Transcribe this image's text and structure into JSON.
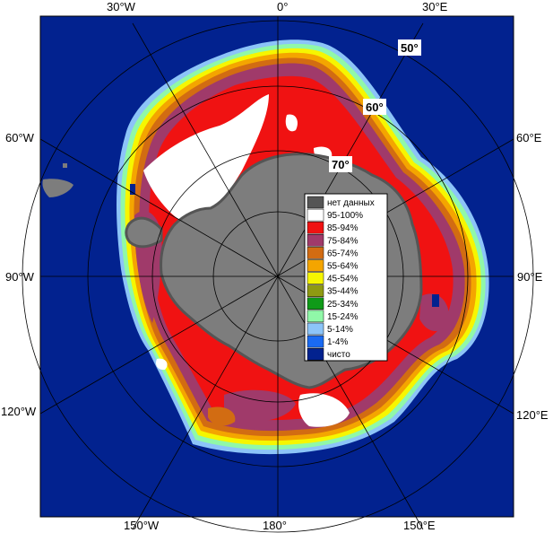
{
  "map": {
    "colors": {
      "ocean": "#02228f",
      "land": "#7d7d7d",
      "nodata": "#555555",
      "ice95": "#ffffff",
      "ice85": "#f01212",
      "ice75": "#a03a6a",
      "ice65": "#d26c12",
      "ice55": "#f4a500",
      "ice45": "#f6f600",
      "ice35": "#8f9a12",
      "ice25": "#0f9a18",
      "ice15": "#90f8a8",
      "ice5": "#8cc4f8",
      "ice1": "#1a6af2",
      "clear": "#02228f"
    },
    "lon_labels": {
      "w30": "30°W",
      "zero": "0°",
      "e30": "30°E",
      "w60": "60°W",
      "e60": "60°E",
      "w90": "90°W",
      "e90": "90°E",
      "w120": "120°W",
      "e120": "120°E",
      "w150": "150°W",
      "d180": "180°",
      "e150": "150°E"
    },
    "lat_labels": {
      "l50": "50°",
      "l60": "60°",
      "l70": "70°"
    },
    "legend": [
      {
        "label": "нет данных",
        "color": "#555555"
      },
      {
        "label": "95-100%",
        "color": "#ffffff"
      },
      {
        "label": "85-94%",
        "color": "#f01212"
      },
      {
        "label": "75-84%",
        "color": "#a03a6a"
      },
      {
        "label": "65-74%",
        "color": "#d26c12"
      },
      {
        "label": "55-64%",
        "color": "#f4a500"
      },
      {
        "label": "45-54%",
        "color": "#f6f600"
      },
      {
        "label": "35-44%",
        "color": "#8f9a12"
      },
      {
        "label": "25-34%",
        "color": "#0f9a18"
      },
      {
        "label": "15-24%",
        "color": "#90f8a8"
      },
      {
        "label": "5-14%",
        "color": "#8cc4f8"
      },
      {
        "label": "1-4%",
        "color": "#1a6af2"
      },
      {
        "label": "чисто",
        "color": "#02228f"
      }
    ]
  }
}
